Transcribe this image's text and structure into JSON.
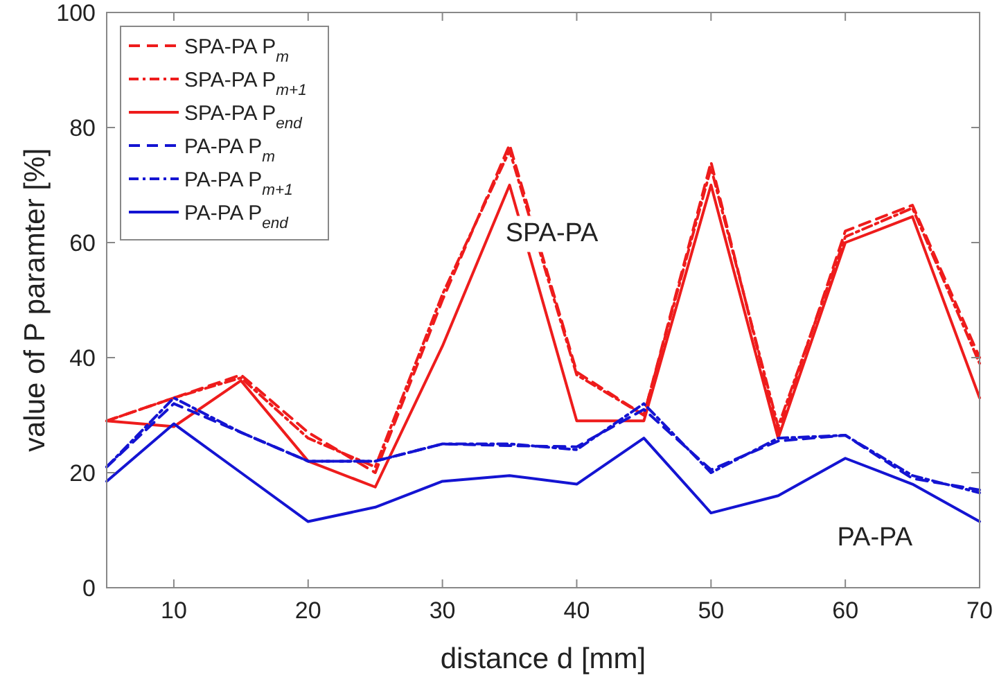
{
  "chart_data": {
    "type": "line",
    "xlabel": "distance d [mm]",
    "ylabel": "value of P paramter [%]",
    "x": [
      5,
      10,
      15,
      20,
      25,
      30,
      35,
      40,
      45,
      50,
      55,
      60,
      65,
      70
    ],
    "xlim": [
      5,
      70
    ],
    "xticks": [
      10,
      20,
      30,
      40,
      50,
      60,
      70
    ],
    "ylim": [
      0,
      100
    ],
    "yticks": [
      0,
      20,
      40,
      60,
      80,
      100
    ],
    "grid": false,
    "legend": "top left",
    "marker": "none",
    "series": [
      {
        "name": "SPA-PA P$_{m}$",
        "color": "#ee1c1c",
        "line_style": "dashed",
        "values": [
          29,
          33,
          37,
          27,
          20,
          50,
          77,
          37.5,
          30,
          74,
          27,
          62,
          66.5,
          40
        ]
      },
      {
        "name": "SPA-PA P$_{m+1}$",
        "color": "#ee1c1c",
        "line_style": "dashdot",
        "values": [
          29,
          33,
          36.5,
          26,
          21,
          51,
          76,
          37,
          30,
          73,
          28,
          61,
          66,
          39
        ]
      },
      {
        "name": "SPA-PA P$_{end}$",
        "color": "#ee1c1c",
        "line_style": "solid",
        "values": [
          29,
          28,
          36,
          22,
          17.5,
          42,
          70,
          29,
          29,
          70,
          26,
          60,
          64.5,
          33
        ]
      },
      {
        "name": "PA-PA P$_{m}$",
        "color": "#1414d2",
        "line_style": "dashed",
        "values": [
          21,
          32,
          27,
          22,
          22,
          25,
          24.7,
          24.5,
          31,
          20.5,
          25.5,
          26.5,
          19,
          17
        ]
      },
      {
        "name": "PA-PA P$_{m+1}$",
        "color": "#1414d2",
        "line_style": "dashdot",
        "values": [
          21,
          33,
          27,
          22,
          22,
          25,
          25,
          24,
          32,
          20,
          26,
          26.5,
          19.5,
          16.5
        ]
      },
      {
        "name": "PA-PA P$_{end}$",
        "color": "#1414d2",
        "line_style": "solid",
        "values": [
          18.5,
          28.5,
          20,
          11.5,
          14,
          18.5,
          19.5,
          18,
          26,
          13,
          16,
          22.5,
          18,
          11.5
        ]
      }
    ],
    "annotations": [
      "SPA-PA",
      "PA-PA"
    ]
  }
}
